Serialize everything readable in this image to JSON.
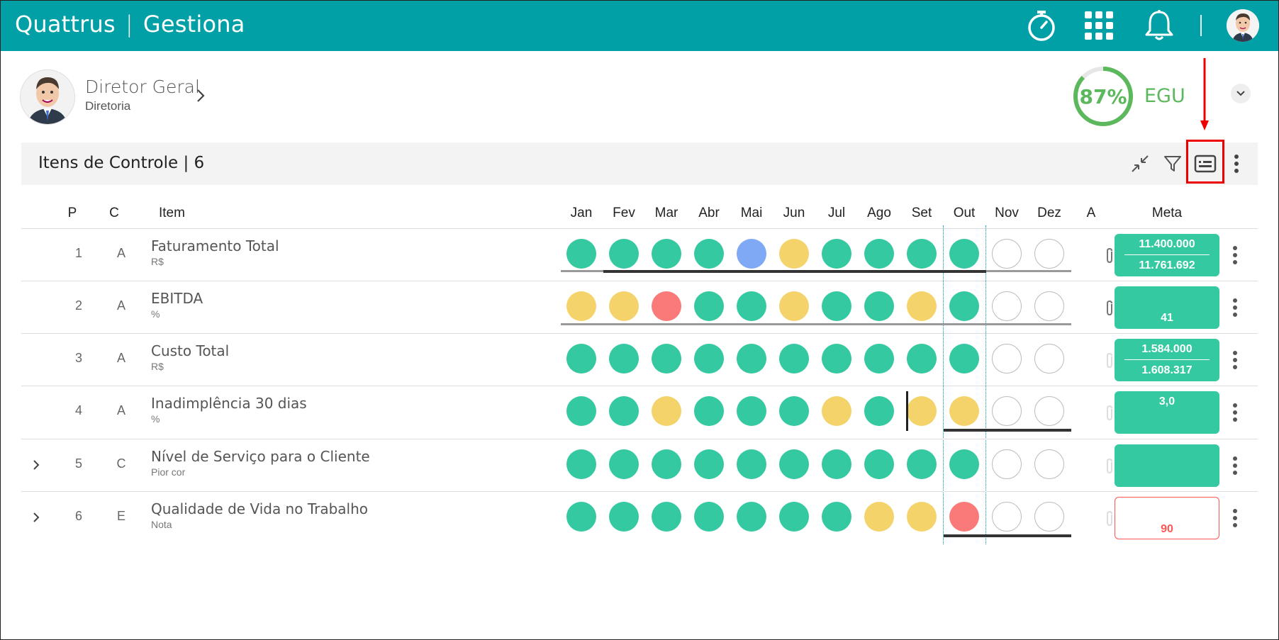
{
  "app": {
    "brand_left": "Quattrus",
    "brand_sep": "|",
    "brand_right": "Gestiona",
    "accent": "#00a0a6"
  },
  "topbar_icons": [
    "timer-icon",
    "apps-grid-icon",
    "bell-icon",
    "user-avatar"
  ],
  "profile": {
    "name": "Diretor Geral",
    "subtitle": "Diretoria"
  },
  "egu": {
    "percent": "87%",
    "label": "EGU",
    "value": 0.87,
    "color": "#5cb85c"
  },
  "section": {
    "title": "Itens de Controle | 6"
  },
  "columns": {
    "p": "P",
    "c": "C",
    "item": "Item",
    "months": [
      "Jan",
      "Fev",
      "Mar",
      "Abr",
      "Mai",
      "Jun",
      "Jul",
      "Ago",
      "Set",
      "Out",
      "Nov",
      "Dez"
    ],
    "a": "A",
    "meta": "Meta"
  },
  "colors": {
    "green": "#34c9a0",
    "yellow": "#f5d36b",
    "red": "#fa7a7a",
    "blue": "#7fa9f5",
    "empty": "#ffffff"
  },
  "rows": [
    {
      "p": "1",
      "c": "A",
      "name": "Faturamento Total",
      "unit": "R$",
      "expand": false,
      "status": [
        "green",
        "green",
        "green",
        "green",
        "blue",
        "yellow",
        "green",
        "green",
        "green",
        "green",
        "empty",
        "empty"
      ],
      "attach": true,
      "meta1": "11.400.000",
      "meta2": "11.761.692",
      "meta_state": "ok"
    },
    {
      "p": "2",
      "c": "A",
      "name": "EBITDA",
      "unit": "%",
      "expand": false,
      "status": [
        "yellow",
        "yellow",
        "red",
        "green",
        "green",
        "yellow",
        "green",
        "green",
        "yellow",
        "green",
        "empty",
        "empty"
      ],
      "attach": true,
      "meta1": "",
      "meta2": "41",
      "meta_state": "ok"
    },
    {
      "p": "3",
      "c": "A",
      "name": "Custo Total",
      "unit": "R$",
      "expand": false,
      "status": [
        "green",
        "green",
        "green",
        "green",
        "green",
        "green",
        "green",
        "green",
        "green",
        "green",
        "empty",
        "empty"
      ],
      "attach": false,
      "meta1": "1.584.000",
      "meta2": "1.608.317",
      "meta_state": "ok"
    },
    {
      "p": "4",
      "c": "A",
      "name": "Inadimplência 30 dias",
      "unit": "%",
      "expand": false,
      "status": [
        "green",
        "green",
        "yellow",
        "green",
        "green",
        "green",
        "yellow",
        "green",
        "yellow",
        "yellow",
        "empty",
        "empty"
      ],
      "attach": false,
      "meta1": "3,0",
      "meta2": "",
      "meta_state": "ok"
    },
    {
      "p": "5",
      "c": "C",
      "name": "Nível de Serviço para o Cliente",
      "unit": "Pior cor",
      "expand": true,
      "status": [
        "green",
        "green",
        "green",
        "green",
        "green",
        "green",
        "green",
        "green",
        "green",
        "green",
        "empty",
        "empty"
      ],
      "attach": false,
      "meta1": "",
      "meta2": "",
      "meta_state": "ok"
    },
    {
      "p": "6",
      "c": "E",
      "name": "Qualidade de Vida no Trabalho",
      "unit": "Nota",
      "expand": true,
      "status": [
        "green",
        "green",
        "green",
        "green",
        "green",
        "green",
        "green",
        "yellow",
        "yellow",
        "red",
        "empty",
        "empty"
      ],
      "attach": false,
      "meta1": "",
      "meta2": "90",
      "meta_state": "bad"
    }
  ]
}
